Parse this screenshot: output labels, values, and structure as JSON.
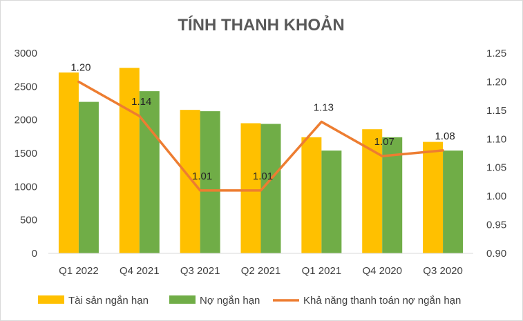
{
  "chart_data": {
    "type": "bar",
    "title": "TÍNH THANH KHOẢN",
    "categories": [
      "Q1 2022",
      "Q4 2021",
      "Q3 2021",
      "Q2 2021",
      "Q1 2021",
      "Q4 2020",
      "Q3 2020"
    ],
    "series": [
      {
        "name": "Tài sản ngắn hạn",
        "type": "bar",
        "axis": "left",
        "color": "#FFC000",
        "values": [
          2710,
          2780,
          2150,
          1950,
          1740,
          1860,
          1670
        ]
      },
      {
        "name": "Nợ ngắn hạn",
        "type": "bar",
        "axis": "left",
        "color": "#70AD47",
        "values": [
          2270,
          2430,
          2130,
          1940,
          1540,
          1740,
          1540
        ]
      },
      {
        "name": "Khả năng thanh toán nợ ngắn hạn",
        "type": "line",
        "axis": "right",
        "color": "#ED7D31",
        "values": [
          1.2,
          1.14,
          1.01,
          1.01,
          1.13,
          1.07,
          1.08
        ],
        "value_labels": [
          "1.20",
          "1.14",
          "1.01",
          "1.01",
          "1.13",
          "1.07",
          "1.08"
        ]
      }
    ],
    "y_left": {
      "min": 0,
      "max": 3000,
      "ticks": [
        "0",
        "500",
        "1000",
        "1500",
        "2000",
        "2500",
        "3000"
      ]
    },
    "y_right": {
      "min": 0.9,
      "max": 1.25,
      "ticks": [
        "0.90",
        "0.95",
        "1.00",
        "1.05",
        "1.10",
        "1.15",
        "1.20",
        "1.25"
      ]
    },
    "grid": false,
    "legend_position": "bottom"
  }
}
